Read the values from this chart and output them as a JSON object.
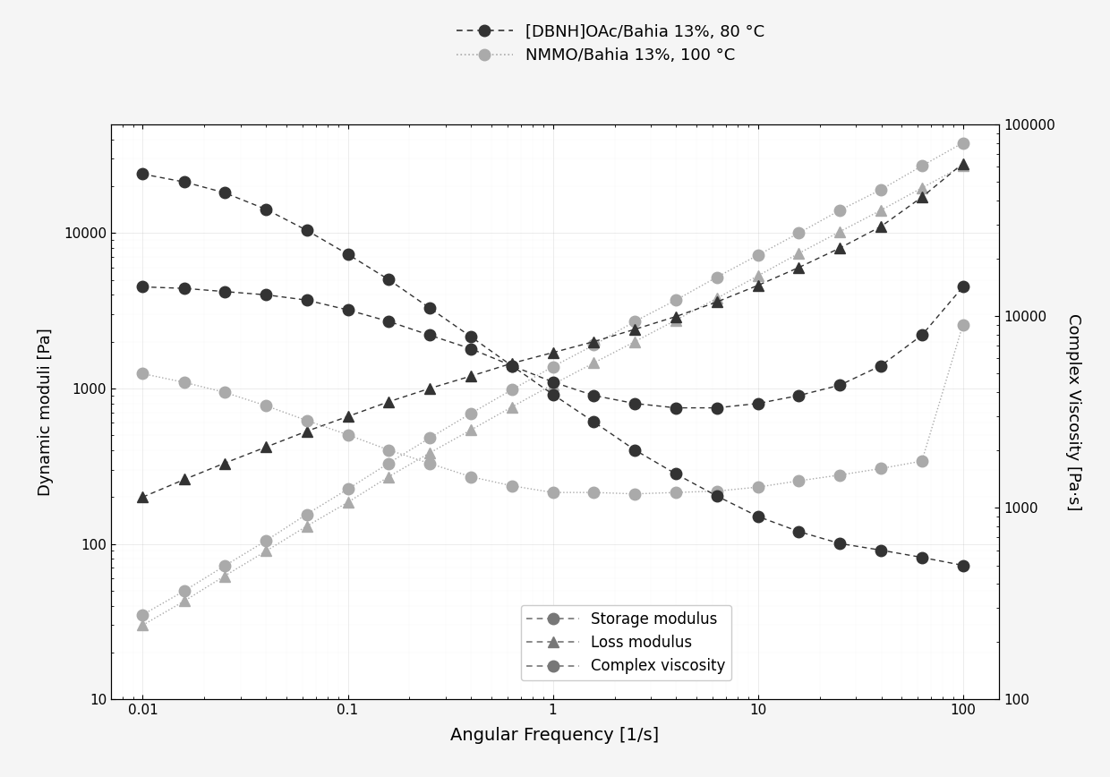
{
  "title_line1": "[DBNH]OAc/Bahia 13%, 80 °C",
  "title_line2": "NMMO/Bahia 13%, 100 °C",
  "xlabel": "Angular Frequency [1/s]",
  "ylabel_left": "Dynamic moduli [Pa]",
  "ylabel_right": "Complex Viscosity [Pa·s]",
  "xlim": [
    0.007,
    150
  ],
  "ylim_left": [
    10,
    50000
  ],
  "ylim_right": [
    100,
    100000
  ],
  "dbnh_storage_x": [
    0.01,
    0.016,
    0.025,
    0.04,
    0.063,
    0.1,
    0.158,
    0.251,
    0.398,
    0.631,
    1.0,
    1.585,
    2.512,
    3.981,
    6.31,
    10.0,
    15.85,
    25.12,
    39.81,
    63.1,
    100.0
  ],
  "dbnh_storage_y": [
    4500,
    4400,
    4200,
    4000,
    3700,
    3200,
    2700,
    2200,
    1800,
    1400,
    1100,
    900,
    800,
    750,
    750,
    800,
    900,
    1050,
    1400,
    2200,
    4500
  ],
  "dbnh_loss_x": [
    0.01,
    0.016,
    0.025,
    0.04,
    0.063,
    0.1,
    0.158,
    0.251,
    0.398,
    0.631,
    1.0,
    1.585,
    2.512,
    3.981,
    6.31,
    10.0,
    15.85,
    25.12,
    39.81,
    63.1,
    100.0
  ],
  "dbnh_loss_y": [
    200,
    260,
    330,
    420,
    530,
    660,
    820,
    1000,
    1200,
    1450,
    1700,
    2000,
    2400,
    2900,
    3600,
    4600,
    6000,
    8000,
    11000,
    17000,
    28000
  ],
  "dbnh_viscosity_x": [
    0.01,
    0.016,
    0.025,
    0.04,
    0.063,
    0.1,
    0.158,
    0.251,
    0.398,
    0.631,
    1.0,
    1.585,
    2.512,
    3.981,
    6.31,
    10.0,
    15.85,
    25.12,
    39.81,
    63.1,
    100.0
  ],
  "dbnh_viscosity_y": [
    55000,
    50000,
    44000,
    36000,
    28000,
    21000,
    15500,
    11000,
    7800,
    5500,
    3900,
    2800,
    2000,
    1500,
    1150,
    900,
    750,
    650,
    600,
    550,
    500
  ],
  "nmmo_storage_x": [
    0.01,
    0.016,
    0.025,
    0.04,
    0.063,
    0.1,
    0.158,
    0.251,
    0.398,
    0.631,
    1.0,
    1.585,
    2.512,
    3.981,
    6.31,
    10.0,
    15.85,
    25.12,
    39.81,
    63.1,
    100.0
  ],
  "nmmo_storage_y": [
    35,
    50,
    72,
    105,
    155,
    225,
    330,
    480,
    690,
    980,
    1380,
    1900,
    2700,
    3700,
    5200,
    7200,
    10000,
    14000,
    19000,
    27000,
    38000
  ],
  "nmmo_loss_x": [
    0.01,
    0.016,
    0.025,
    0.04,
    0.063,
    0.1,
    0.158,
    0.251,
    0.398,
    0.631,
    1.0,
    1.585,
    2.512,
    3.981,
    6.31,
    10.0,
    15.85,
    25.12,
    39.81,
    63.1,
    100.0
  ],
  "nmmo_loss_y": [
    30,
    43,
    62,
    90,
    130,
    185,
    270,
    385,
    540,
    760,
    1060,
    1460,
    2000,
    2750,
    3800,
    5300,
    7400,
    10200,
    14000,
    19500,
    27000
  ],
  "nmmo_viscosity_x": [
    0.01,
    0.016,
    0.025,
    0.04,
    0.063,
    0.1,
    0.158,
    0.251,
    0.398,
    0.631,
    1.0,
    1.585,
    2.512,
    3.981,
    6.31,
    10.0,
    15.85,
    25.12,
    39.81,
    63.1,
    100.0
  ],
  "nmmo_viscosity_y": [
    5000,
    4500,
    4000,
    3400,
    2850,
    2400,
    2000,
    1700,
    1450,
    1300,
    1200,
    1200,
    1180,
    1200,
    1220,
    1280,
    1380,
    1480,
    1600,
    1750,
    9000
  ],
  "color_dbnh": "#333333",
  "color_nmmo": "#aaaaaa",
  "legend1_label1": "[DBNH]OAc/Bahia 13%, 80 °C",
  "legend1_label2": "NMMO/Bahia 13%, 100 °C",
  "legend2_label1": "Storage modulus",
  "legend2_label2": "Loss modulus",
  "legend2_label3": "Complex viscosity",
  "bg_color": "#f5f5f5",
  "plot_bg": "#ffffff"
}
